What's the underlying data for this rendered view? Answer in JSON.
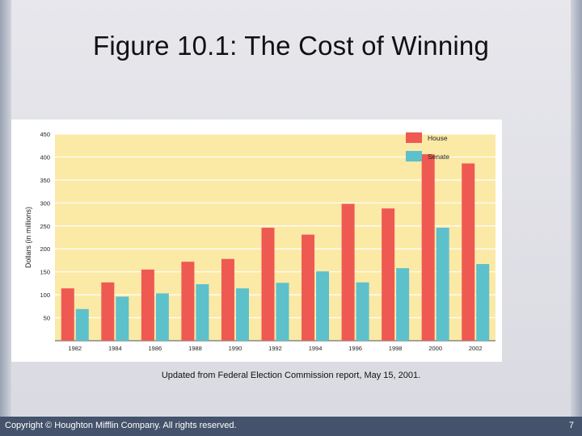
{
  "slide": {
    "title": "Figure 10.1: The Cost of Winning",
    "caption": "Updated from Federal Election Commission report, May 15, 2001.",
    "copyright": "Copyright © Houghton Mifflin Company. All rights reserved.",
    "page_number": "7"
  },
  "colors": {
    "house": "#ee5a52",
    "senate": "#5cc1cb",
    "plot_bg": "#fbe9a6",
    "grid": "#ffffff"
  },
  "chart_data": {
    "type": "bar",
    "title": "",
    "xlabel": "",
    "ylabel": "Dollars (in millions)",
    "ylim": [
      0,
      450
    ],
    "yticks": [
      50,
      100,
      150,
      200,
      250,
      300,
      350,
      400,
      450
    ],
    "grid": true,
    "legend_position": "top-right",
    "categories": [
      "1982",
      "1984",
      "1986",
      "1988",
      "1990",
      "1992",
      "1994",
      "1996",
      "1998",
      "2000",
      "2002"
    ],
    "series": [
      {
        "name": "House",
        "values": [
          114,
          127,
          155,
          172,
          178,
          246,
          231,
          298,
          288,
          406,
          386
        ]
      },
      {
        "name": "Senate",
        "values": [
          69,
          96,
          103,
          123,
          114,
          126,
          151,
          127,
          158,
          246,
          167
        ]
      }
    ]
  }
}
